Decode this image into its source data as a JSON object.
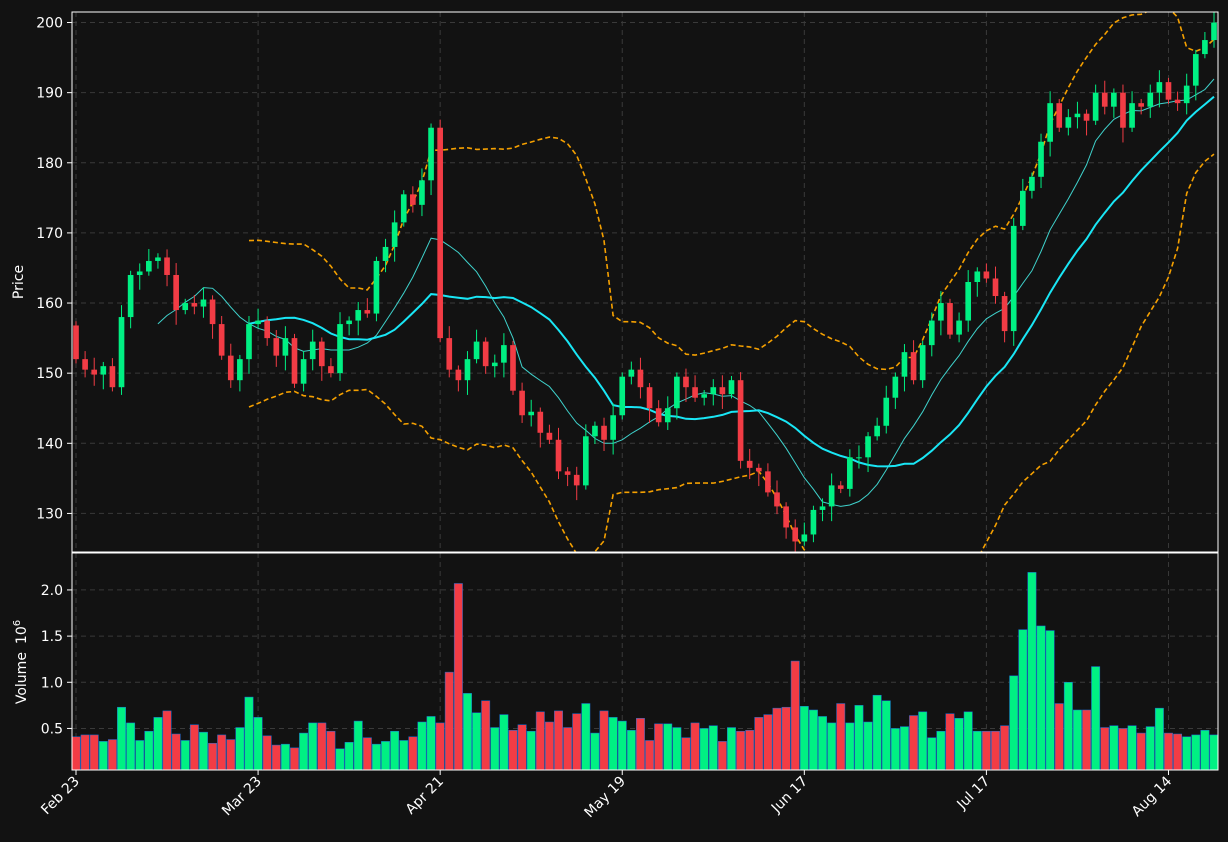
{
  "chart_data": {
    "type": "candlestick",
    "price_axis": {
      "label": "Price",
      "ticks": [
        130,
        140,
        150,
        160,
        170,
        180,
        190,
        200
      ],
      "range": [
        124.5,
        201.5
      ]
    },
    "volume_axis": {
      "label": "Volume",
      "exponent_label": "10",
      "exponent": "6",
      "ticks": [
        "0.5",
        "1.0",
        "1.5",
        "2.0"
      ],
      "tick_values": [
        0.5,
        1.0,
        1.5,
        2.0
      ],
      "range": [
        0.05,
        2.4
      ]
    },
    "x_ticks": [
      {
        "label": "Feb 23",
        "index": 0
      },
      {
        "label": "Mar 23",
        "index": 20
      },
      {
        "label": "Apr 21",
        "index": 40
      },
      {
        "label": "May 19",
        "index": 60
      },
      {
        "label": "Jun 17",
        "index": 80
      },
      {
        "label": "Jul 17",
        "index": 100
      },
      {
        "label": "Aug 14",
        "index": 120
      }
    ],
    "grid": true,
    "colors": {
      "background": "#121212",
      "up": "#00f083",
      "down": "#f23c45",
      "ma_short": "#3fd2cc",
      "ma_long": "#19e6f5",
      "bands": "#f5a000",
      "grid": "#3a3a3a",
      "axis": "#ffffff"
    },
    "close": [
      152.0,
      150.5,
      149.8,
      151.0,
      148.0,
      158.0,
      164.0,
      164.5,
      166.0,
      166.5,
      164.0,
      159.0,
      160.0,
      159.5,
      160.5,
      157.0,
      152.5,
      149.0,
      152.0,
      157.0,
      157.5,
      155.0,
      152.5,
      155.0,
      148.5,
      152.0,
      154.5,
      151.0,
      150.0,
      157.0,
      157.5,
      159.0,
      158.5,
      166.0,
      168.0,
      171.5,
      175.5,
      174.0,
      177.5,
      185.0,
      155.0,
      150.5,
      149.0,
      152.0,
      154.5,
      151.0,
      151.5,
      154.0,
      147.5,
      144.0,
      144.5,
      141.5,
      140.5,
      136.0,
      135.5,
      134.0,
      141.0,
      142.5,
      140.5,
      144.0,
      149.5,
      150.5,
      148.0,
      145.0,
      143.0,
      145.0,
      149.5,
      148.0,
      146.5,
      147.0,
      148.0,
      147.0,
      149.0,
      137.5,
      136.5,
      136.0,
      133.0,
      131.0,
      128.0,
      126.0,
      127.0,
      130.5,
      131.0,
      134.0,
      133.5,
      138.0,
      138.0,
      141.0,
      142.5,
      146.5,
      149.5,
      153.0,
      149.0,
      154.0,
      157.5,
      160.0,
      155.5,
      157.5,
      163.0,
      164.5,
      163.5,
      161.0,
      156.0,
      171.0,
      176.0,
      178.0,
      183.0,
      188.5,
      185.0,
      186.5,
      187.0,
      186.0,
      190.0,
      188.0,
      190.0,
      185.0,
      188.5,
      188.0,
      190.0,
      191.5,
      189.0,
      188.5,
      191.0,
      195.5,
      197.5,
      200.0
    ],
    "volume": [
      0.41,
      0.43,
      0.43,
      0.36,
      0.38,
      0.73,
      0.56,
      0.37,
      0.47,
      0.62,
      0.69,
      0.44,
      0.37,
      0.54,
      0.46,
      0.34,
      0.43,
      0.38,
      0.51,
      0.84,
      0.62,
      0.42,
      0.32,
      0.33,
      0.29,
      0.45,
      0.56,
      0.56,
      0.47,
      0.28,
      0.35,
      0.58,
      0.4,
      0.33,
      0.36,
      0.47,
      0.37,
      0.41,
      0.57,
      0.63,
      0.56,
      1.11,
      2.07,
      0.88,
      0.67,
      0.8,
      0.51,
      0.65,
      0.48,
      0.54,
      0.47,
      0.68,
      0.57,
      0.69,
      0.51,
      0.66,
      0.77,
      0.45,
      0.69,
      0.62,
      0.58,
      0.48,
      0.61,
      0.37,
      0.55,
      0.55,
      0.51,
      0.4,
      0.56,
      0.5,
      0.53,
      0.36,
      0.51,
      0.47,
      0.48,
      0.62,
      0.65,
      0.72,
      0.73,
      1.23,
      0.74,
      0.7,
      0.63,
      0.56,
      0.77,
      0.56,
      0.75,
      0.57,
      0.86,
      0.8,
      0.5,
      0.52,
      0.64,
      0.68,
      0.4,
      0.47,
      0.66,
      0.61,
      0.68,
      0.47,
      0.47,
      0.47,
      0.53,
      1.07,
      1.57,
      2.19,
      1.61,
      1.56,
      0.77,
      1.0,
      0.7,
      0.7,
      1.17,
      0.51,
      0.53,
      0.5,
      0.53,
      0.45,
      0.52,
      0.72,
      0.45,
      0.44,
      0.41,
      0.43,
      0.48,
      0.43
    ]
  }
}
